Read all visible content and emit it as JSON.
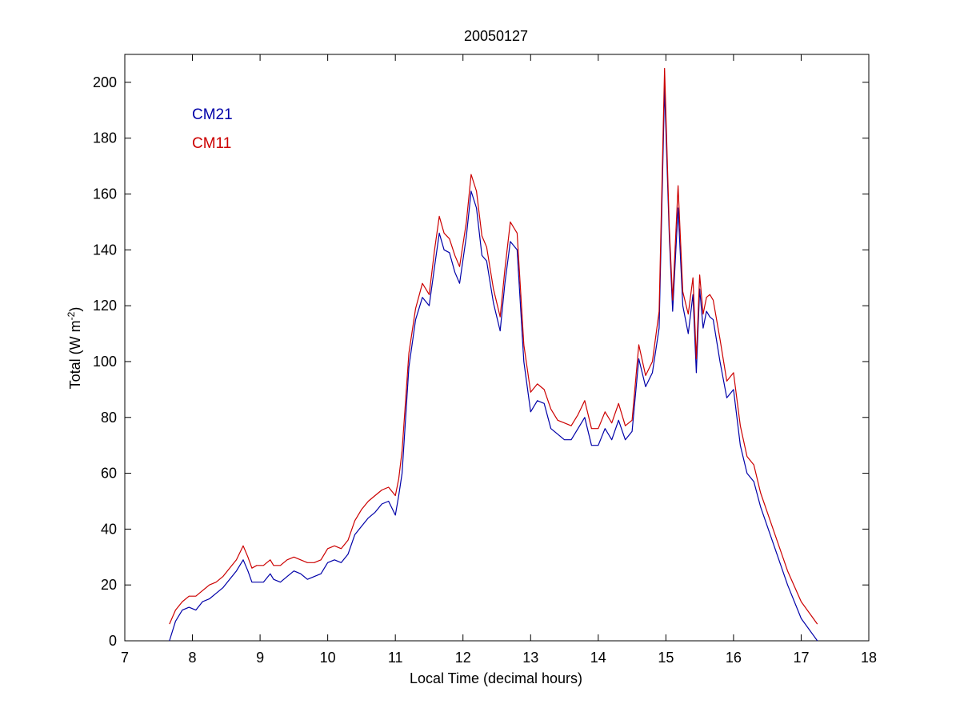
{
  "chart_data": {
    "type": "line",
    "title": "20050127",
    "xlabel": "Local Time (decimal hours)",
    "ylabel": {
      "main": "Total (W m",
      "superscript": "-2",
      "close": ")"
    },
    "xlim": [
      7,
      18
    ],
    "ylim": [
      0,
      210
    ],
    "xticks": [
      7,
      8,
      9,
      10,
      11,
      12,
      13,
      14,
      15,
      16,
      17,
      18
    ],
    "yticks": [
      0,
      20,
      40,
      60,
      80,
      100,
      120,
      140,
      160,
      180,
      200
    ],
    "grid": false,
    "legend_position": "top-left",
    "series": [
      {
        "name": "CM21",
        "color": "#0000a8",
        "x": [
          7.66,
          7.75,
          7.85,
          7.95,
          8.05,
          8.15,
          8.25,
          8.35,
          8.45,
          8.55,
          8.65,
          8.75,
          8.82,
          8.88,
          8.95,
          9.05,
          9.15,
          9.2,
          9.3,
          9.4,
          9.5,
          9.6,
          9.7,
          9.8,
          9.9,
          10.0,
          10.1,
          10.2,
          10.3,
          10.4,
          10.5,
          10.6,
          10.7,
          10.8,
          10.9,
          11.0,
          11.05,
          11.1,
          11.2,
          11.3,
          11.4,
          11.5,
          11.58,
          11.65,
          11.72,
          11.8,
          11.88,
          11.95,
          12.05,
          12.12,
          12.2,
          12.28,
          12.35,
          12.45,
          12.55,
          12.62,
          12.7,
          12.8,
          12.9,
          13.0,
          13.1,
          13.2,
          13.3,
          13.4,
          13.5,
          13.6,
          13.7,
          13.8,
          13.9,
          14.0,
          14.1,
          14.2,
          14.3,
          14.4,
          14.5,
          14.6,
          14.7,
          14.8,
          14.9,
          14.98,
          15.05,
          15.1,
          15.18,
          15.25,
          15.33,
          15.4,
          15.45,
          15.5,
          15.55,
          15.6,
          15.65,
          15.7,
          15.8,
          15.9,
          16.0,
          16.1,
          16.2,
          16.3,
          16.4,
          16.6,
          16.8,
          17.0,
          17.24
        ],
        "values": [
          0,
          7,
          11,
          12,
          11,
          14,
          15,
          17,
          19,
          22,
          25,
          29,
          25,
          21,
          21,
          21,
          24,
          22,
          21,
          23,
          25,
          24,
          22,
          23,
          24,
          28,
          29,
          28,
          31,
          38,
          41,
          44,
          46,
          49,
          50,
          45,
          52,
          60,
          98,
          115,
          123,
          120,
          134,
          146,
          140,
          139,
          132,
          128,
          145,
          161,
          155,
          138,
          136,
          121,
          111,
          128,
          143,
          140,
          100,
          82,
          86,
          85,
          76,
          74,
          72,
          72,
          76,
          80,
          70,
          70,
          76,
          72,
          79,
          72,
          75,
          101,
          91,
          96,
          112,
          198,
          145,
          118,
          155,
          120,
          110,
          124,
          96,
          126,
          112,
          118,
          116,
          115,
          100,
          87,
          90,
          70,
          60,
          57,
          48,
          34,
          20,
          8,
          0
        ]
      },
      {
        "name": "CM11",
        "color": "#cc0000",
        "x": [
          7.66,
          7.75,
          7.85,
          7.95,
          8.05,
          8.15,
          8.25,
          8.35,
          8.45,
          8.55,
          8.65,
          8.75,
          8.82,
          8.88,
          8.95,
          9.05,
          9.15,
          9.2,
          9.3,
          9.4,
          9.5,
          9.6,
          9.7,
          9.8,
          9.9,
          10.0,
          10.1,
          10.2,
          10.3,
          10.4,
          10.5,
          10.6,
          10.7,
          10.8,
          10.9,
          11.0,
          11.05,
          11.1,
          11.2,
          11.3,
          11.4,
          11.5,
          11.58,
          11.65,
          11.72,
          11.8,
          11.88,
          11.95,
          12.05,
          12.12,
          12.2,
          12.28,
          12.35,
          12.45,
          12.55,
          12.62,
          12.7,
          12.8,
          12.9,
          13.0,
          13.1,
          13.2,
          13.3,
          13.4,
          13.5,
          13.6,
          13.7,
          13.8,
          13.9,
          14.0,
          14.1,
          14.2,
          14.3,
          14.4,
          14.5,
          14.6,
          14.7,
          14.8,
          14.9,
          14.98,
          15.05,
          15.1,
          15.18,
          15.25,
          15.33,
          15.4,
          15.45,
          15.5,
          15.55,
          15.6,
          15.65,
          15.7,
          15.8,
          15.9,
          16.0,
          16.1,
          16.2,
          16.3,
          16.4,
          16.6,
          16.8,
          17.0,
          17.24
        ],
        "values": [
          6,
          11,
          14,
          16,
          16,
          18,
          20,
          21,
          23,
          26,
          29,
          34,
          30,
          26,
          27,
          27,
          29,
          27,
          27,
          29,
          30,
          29,
          28,
          28,
          29,
          33,
          34,
          33,
          36,
          43,
          47,
          50,
          52,
          54,
          55,
          52,
          58,
          68,
          103,
          119,
          128,
          124,
          140,
          152,
          146,
          144,
          138,
          134,
          150,
          167,
          161,
          145,
          141,
          126,
          116,
          133,
          150,
          146,
          106,
          89,
          92,
          90,
          83,
          79,
          78,
          77,
          81,
          86,
          76,
          76,
          82,
          78,
          85,
          77,
          79,
          106,
          95,
          100,
          118,
          205,
          148,
          122,
          163,
          125,
          117,
          130,
          101,
          131,
          117,
          123,
          124,
          122,
          108,
          93,
          96,
          77,
          66,
          63,
          53,
          39,
          25,
          14,
          6
        ]
      }
    ]
  }
}
